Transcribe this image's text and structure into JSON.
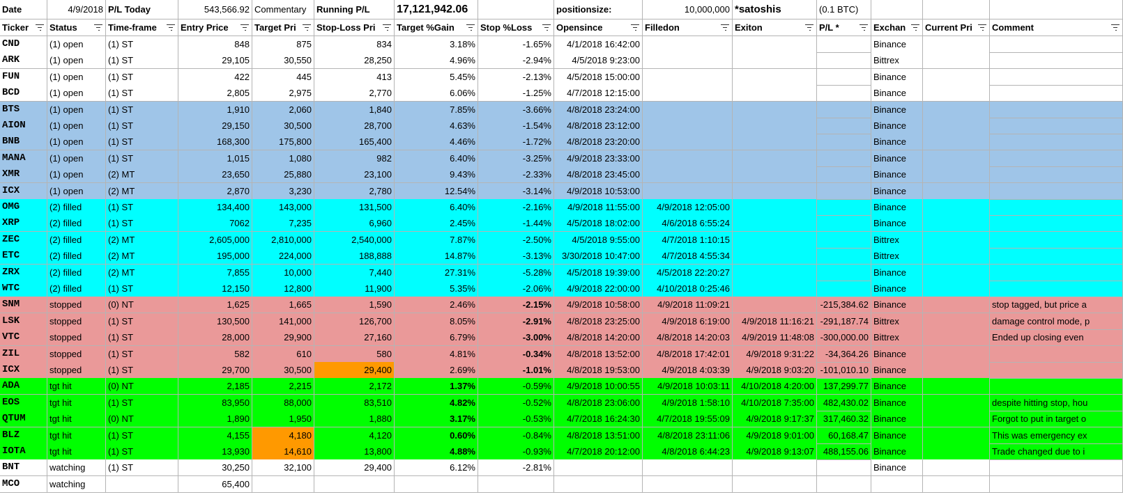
{
  "top_row": {
    "date_label": "Date",
    "date_value": "4/9/2018",
    "pl_today_label": "P/L Today",
    "pl_today_value": "543,566.92",
    "commentary_label": "Commentary",
    "running_pl_label": "Running P/L",
    "running_pl_value": "17,121,942.06",
    "positionsize_label": "positionsize:",
    "positionsize_value": "10,000,000",
    "unit_label": "*satoshis",
    "unit_btc": "(0.1 BTC)"
  },
  "headers": [
    "Ticker",
    "Status",
    "Time-frame",
    "Entry Price",
    "Target Pri",
    "Stop-Loss Pri",
    "Target %Gain",
    "Stop %Loss",
    "Opensince",
    "Filledon",
    "Exiton",
    "P/L *",
    "Exchan",
    "Current Pri",
    "Comment"
  ],
  "colors": {
    "open_white": "#ffffff",
    "open_blue": "#9fc5e8",
    "filled": "#00ffff",
    "stopped": "#ea9999",
    "tgt_hit": "#00ff00",
    "highlight": "#ff9900",
    "gridline": "#b4b4b4"
  },
  "rows": [
    {
      "ticker": "CND",
      "status": "(1) open",
      "timeframe": "(1) ST",
      "entry": "848",
      "target": "875",
      "stop": "834",
      "gain": "3.18%",
      "loss": "-1.65%",
      "opensince": "4/1/2018 16:42:00",
      "filledon": "",
      "exiton": "",
      "pl": "",
      "exchange": "Binance",
      "current": "",
      "comment": ""
    },
    {
      "ticker": "ARK",
      "status": "(1) open",
      "timeframe": "(1) ST",
      "entry": "29,105",
      "target": "30,550",
      "stop": "28,250",
      "gain": "4.96%",
      "loss": "-2.94%",
      "opensince": "4/5/2018 9:23:00",
      "filledon": "",
      "exiton": "",
      "pl": "",
      "exchange": "Bittrex",
      "current": "",
      "comment": ""
    },
    {
      "ticker": "FUN",
      "status": "(1) open",
      "timeframe": "(1) ST",
      "entry": "422",
      "target": "445",
      "stop": "413",
      "gain": "5.45%",
      "loss": "-2.13%",
      "opensince": "4/5/2018 15:00:00",
      "filledon": "",
      "exiton": "",
      "pl": "",
      "exchange": "Binance",
      "current": "",
      "comment": ""
    },
    {
      "ticker": "BCD",
      "status": "(1) open",
      "timeframe": "(1) ST",
      "entry": "2,805",
      "target": "2,975",
      "stop": "2,770",
      "gain": "6.06%",
      "loss": "-1.25%",
      "opensince": "4/7/2018 12:15:00",
      "filledon": "",
      "exiton": "",
      "pl": "",
      "exchange": "Binance",
      "current": "",
      "comment": ""
    },
    {
      "ticker": "BTS",
      "status": "(1) open",
      "timeframe": "(1) ST",
      "entry": "1,910",
      "target": "2,060",
      "stop": "1,840",
      "gain": "7.85%",
      "loss": "-3.66%",
      "opensince": "4/8/2018 23:24:00",
      "filledon": "",
      "exiton": "",
      "pl": "",
      "exchange": "Binance",
      "current": "",
      "comment": ""
    },
    {
      "ticker": "AION",
      "status": "(1) open",
      "timeframe": "(1) ST",
      "entry": "29,150",
      "target": "30,500",
      "stop": "28,700",
      "gain": "4.63%",
      "loss": "-1.54%",
      "opensince": "4/8/2018 23:12:00",
      "filledon": "",
      "exiton": "",
      "pl": "",
      "exchange": "Binance",
      "current": "",
      "comment": ""
    },
    {
      "ticker": "BNB",
      "status": "(1) open",
      "timeframe": "(1) ST",
      "entry": "168,300",
      "target": "175,800",
      "stop": "165,400",
      "gain": "4.46%",
      "loss": "-1.72%",
      "opensince": "4/8/2018 23:20:00",
      "filledon": "",
      "exiton": "",
      "pl": "",
      "exchange": "Binance",
      "current": "",
      "comment": ""
    },
    {
      "ticker": "MANA",
      "status": "(1) open",
      "timeframe": "(1) ST",
      "entry": "1,015",
      "target": "1,080",
      "stop": "982",
      "gain": "6.40%",
      "loss": "-3.25%",
      "opensince": "4/9/2018 23:33:00",
      "filledon": "",
      "exiton": "",
      "pl": "",
      "exchange": "Binance",
      "current": "",
      "comment": ""
    },
    {
      "ticker": "XMR",
      "status": "(1) open",
      "timeframe": "(2) MT",
      "entry": "23,650",
      "target": "25,880",
      "stop": "23,100",
      "gain": "9.43%",
      "loss": "-2.33%",
      "opensince": "4/8/2018 23:45:00",
      "filledon": "",
      "exiton": "",
      "pl": "",
      "exchange": "Binance",
      "current": "",
      "comment": ""
    },
    {
      "ticker": "ICX",
      "status": "(1) open",
      "timeframe": "(2) MT",
      "entry": "2,870",
      "target": "3,230",
      "stop": "2,780",
      "gain": "12.54%",
      "loss": "-3.14%",
      "opensince": "4/9/2018 10:53:00",
      "filledon": "",
      "exiton": "",
      "pl": "",
      "exchange": "Binance",
      "current": "",
      "comment": ""
    },
    {
      "ticker": "OMG",
      "status": "(2) filled",
      "timeframe": "(1) ST",
      "entry": "134,400",
      "target": "143,000",
      "stop": "131,500",
      "gain": "6.40%",
      "loss": "-2.16%",
      "opensince": "4/9/2018 11:55:00",
      "filledon": "4/9/2018 12:05:00",
      "exiton": "",
      "pl": "",
      "exchange": "Binance",
      "current": "",
      "comment": ""
    },
    {
      "ticker": "XRP",
      "status": "(2) filled",
      "timeframe": "(1) ST",
      "entry": "7062",
      "target": "7,235",
      "stop": "6,960",
      "gain": "2.45%",
      "loss": "-1.44%",
      "opensince": "4/5/2018 18:02:00",
      "filledon": "4/6/2018 6:55:24",
      "exiton": "",
      "pl": "",
      "exchange": "Binance",
      "current": "",
      "comment": ""
    },
    {
      "ticker": "ZEC",
      "status": "(2) filled",
      "timeframe": "(2) MT",
      "entry": "2,605,000",
      "target": "2,810,000",
      "stop": "2,540,000",
      "gain": "7.87%",
      "loss": "-2.50%",
      "opensince": "4/5/2018 9:55:00",
      "filledon": "4/7/2018 1:10:15",
      "exiton": "",
      "pl": "",
      "exchange": "Bittrex",
      "current": "",
      "comment": ""
    },
    {
      "ticker": "ETC",
      "status": "(2) filled",
      "timeframe": "(2) MT",
      "entry": "195,000",
      "target": "224,000",
      "stop": "188,888",
      "gain": "14.87%",
      "loss": "-3.13%",
      "opensince": "3/30/2018 10:47:00",
      "filledon": "4/7/2018 4:55:34",
      "exiton": "",
      "pl": "",
      "exchange": "Bittrex",
      "current": "",
      "comment": ""
    },
    {
      "ticker": "ZRX",
      "status": "(2) filled",
      "timeframe": "(2) MT",
      "entry": "7,855",
      "target": "10,000",
      "stop": "7,440",
      "gain": "27.31%",
      "loss": "-5.28%",
      "opensince": "4/5/2018 19:39:00",
      "filledon": "4/5/2018 22:20:27",
      "exiton": "",
      "pl": "",
      "exchange": "Binance",
      "current": "",
      "comment": ""
    },
    {
      "ticker": "WTC",
      "status": "(2) filled",
      "timeframe": "(1) ST",
      "entry": "12,150",
      "target": "12,800",
      "stop": "11,900",
      "gain": "5.35%",
      "loss": "-2.06%",
      "opensince": "4/9/2018 22:00:00",
      "filledon": "4/10/2018 0:25:46",
      "exiton": "",
      "pl": "",
      "exchange": "Binance",
      "current": "",
      "comment": ""
    },
    {
      "ticker": "SNM",
      "status": "stopped",
      "timeframe": "(0) NT",
      "entry": "1,625",
      "target": "1,665",
      "stop": "1,590",
      "gain": "2.46%",
      "loss": "-2.15%",
      "opensince": "4/9/2018 10:58:00",
      "filledon": "4/9/2018 11:09:21",
      "exiton": "",
      "pl": "-215,384.62",
      "exchange": "Binance",
      "current": "",
      "comment": "stop tagged, but price a"
    },
    {
      "ticker": "LSK",
      "status": "stopped",
      "timeframe": "(1) ST",
      "entry": "130,500",
      "target": "141,000",
      "stop": "126,700",
      "gain": "8.05%",
      "loss": "-2.91%",
      "opensince": "4/8/2018 23:25:00",
      "filledon": "4/9/2018 6:19:00",
      "exiton": "4/9/2018 11:16:21",
      "pl": "-291,187.74",
      "exchange": "Bittrex",
      "current": "",
      "comment": "damage control mode, p"
    },
    {
      "ticker": "VTC",
      "status": "stopped",
      "timeframe": "(1) ST",
      "entry": "28,000",
      "target": "29,900",
      "stop": "27,160",
      "gain": "6.79%",
      "loss": "-3.00%",
      "opensince": "4/8/2018 14:20:00",
      "filledon": "4/8/2018 14:20:03",
      "exiton": "4/9/2019 11:48:08",
      "pl": "-300,000.00",
      "exchange": "Bittrex",
      "current": "",
      "comment": "Ended up closing even"
    },
    {
      "ticker": "ZIL",
      "status": "stopped",
      "timeframe": "(1) ST",
      "entry": "582",
      "target": "610",
      "stop": "580",
      "gain": "4.81%",
      "loss": "-0.34%",
      "opensince": "4/8/2018 13:52:00",
      "filledon": "4/8/2018 17:42:01",
      "exiton": "4/9/2018 9:31:22",
      "pl": "-34,364.26",
      "exchange": "Binance",
      "current": "",
      "comment": ""
    },
    {
      "ticker": "ICX",
      "status": "stopped",
      "timeframe": "(1) ST",
      "entry": "29,700",
      "target": "30,500",
      "stop": "29,400",
      "gain": "2.69%",
      "loss": "-1.01%",
      "opensince": "4/8/2018 19:53:00",
      "filledon": "4/9/2018 4:03:39",
      "exiton": "4/9/2018 9:03:20",
      "pl": "-101,010.10",
      "exchange": "Binance",
      "current": "",
      "comment": ""
    },
    {
      "ticker": "ADA",
      "status": "tgt hit",
      "timeframe": "(0) NT",
      "entry": "2,185",
      "target": "2,215",
      "stop": "2,172",
      "gain": "1.37%",
      "loss": "-0.59%",
      "opensince": "4/9/2018 10:00:55",
      "filledon": "4/9/2018 10:03:11",
      "exiton": "4/10/2018 4:20:00",
      "pl": "137,299.77",
      "exchange": "Binance",
      "current": "",
      "comment": ""
    },
    {
      "ticker": "EOS",
      "status": "tgt hit",
      "timeframe": "(1) ST",
      "entry": "83,950",
      "target": "88,000",
      "stop": "83,510",
      "gain": "4.82%",
      "loss": "-0.52%",
      "opensince": "4/8/2018 23:06:00",
      "filledon": "4/9/2018 1:58:10",
      "exiton": "4/10/2018 7:35:00",
      "pl": "482,430.02",
      "exchange": "Binance",
      "current": "",
      "comment": "despite hitting stop, hou"
    },
    {
      "ticker": "QTUM",
      "status": "tgt hit",
      "timeframe": "(0) NT",
      "entry": "1,890",
      "target": "1,950",
      "stop": "1,880",
      "gain": "3.17%",
      "loss": "-0.53%",
      "opensince": "4/7/2018 16:24:30",
      "filledon": "4/7/2018 19:55:09",
      "exiton": "4/9/2018 9:17:37",
      "pl": "317,460.32",
      "exchange": "Binance",
      "current": "",
      "comment": "Forgot to put in target o"
    },
    {
      "ticker": "BLZ",
      "status": "tgt hit",
      "timeframe": "(1) ST",
      "entry": "4,155",
      "target": "4,180",
      "stop": "4,120",
      "gain": "0.60%",
      "loss": "-0.84%",
      "opensince": "4/8/2018 13:51:00",
      "filledon": "4/8/2018 23:11:06",
      "exiton": "4/9/2018 9:01:00",
      "pl": "60,168.47",
      "exchange": "Binance",
      "current": "",
      "comment": "This was emergency ex"
    },
    {
      "ticker": "IOTA",
      "status": "tgt hit",
      "timeframe": "(1) ST",
      "entry": "13,930",
      "target": "14,610",
      "stop": "13,800",
      "gain": "4.88%",
      "loss": "-0.93%",
      "opensince": "4/7/2018 20:12:00",
      "filledon": "4/8/2018 6:44:23",
      "exiton": "4/9/2018 9:13:07",
      "pl": "488,155.06",
      "exchange": "Binance",
      "current": "",
      "comment": "Trade changed due to i"
    },
    {
      "ticker": "BNT",
      "status": "watching",
      "timeframe": "(1) ST",
      "entry": "30,250",
      "target": "32,100",
      "stop": "29,400",
      "gain": "6.12%",
      "loss": "-2.81%",
      "opensince": "",
      "filledon": "",
      "exiton": "",
      "pl": "",
      "exchange": "Binance",
      "current": "",
      "comment": ""
    },
    {
      "ticker": "MCO",
      "status": "watching",
      "timeframe": "",
      "entry": "65,400",
      "target": "",
      "stop": "",
      "gain": "",
      "loss": "",
      "opensince": "",
      "filledon": "",
      "exiton": "",
      "pl": "",
      "exchange": "",
      "current": "",
      "comment": ""
    }
  ]
}
